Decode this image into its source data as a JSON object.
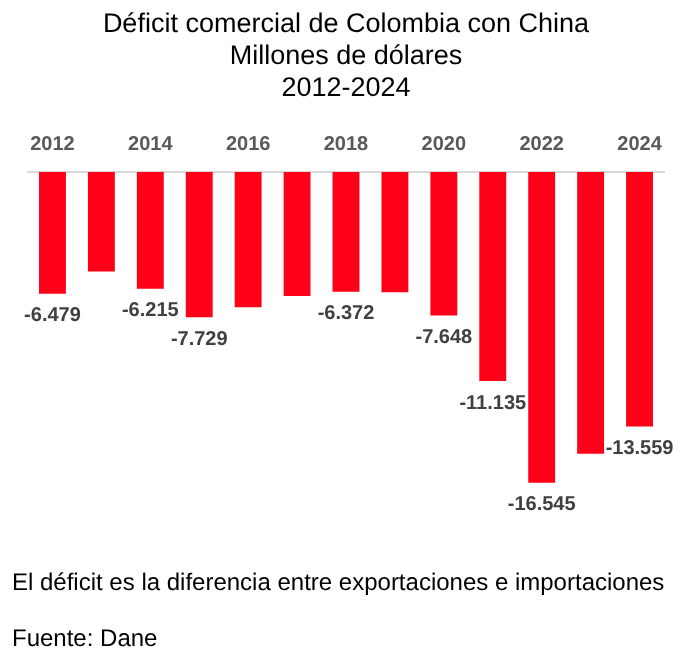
{
  "chart_data": {
    "type": "bar",
    "title": "Déficit comercial de Colombia con China",
    "subtitle": "Millones de dólares\n2012-2024",
    "categories": [
      "2012",
      null,
      "2014",
      null,
      "2016",
      null,
      "2018",
      null,
      "2020",
      null,
      "2022",
      null,
      "2024"
    ],
    "values": [
      -6.479,
      -5.3,
      -6.215,
      -7.729,
      -7.2,
      -6.6,
      -6.372,
      -6.4,
      -7.648,
      -11.135,
      -16.545,
      -15.0,
      -13.559
    ],
    "value_labels": [
      "-6.479",
      null,
      "-6.215",
      "-7.729",
      null,
      null,
      "-6.372",
      null,
      "-7.648",
      "-11.135",
      "-16.545",
      null,
      "-13.559"
    ],
    "color": "#ff0019",
    "grid": false,
    "legend": false,
    "annotations": [
      "El déficit es la diferencia entre exportaciones e importaciones",
      "Fuente: Dane"
    ]
  }
}
